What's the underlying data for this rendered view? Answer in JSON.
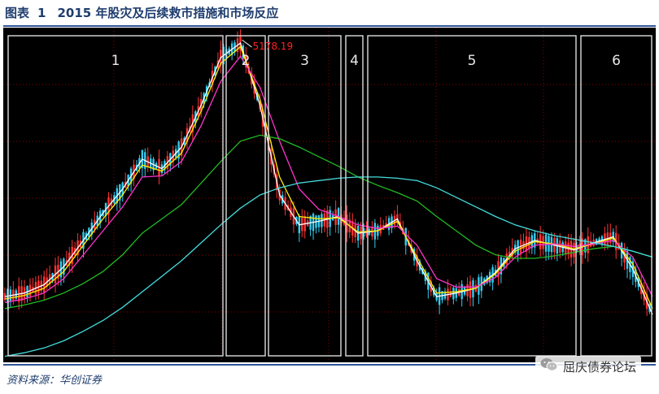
{
  "header": {
    "figure_label": "图表",
    "figure_number": "1",
    "title": "2015 年股灾及后续救市措施和市场反应"
  },
  "footer": {
    "source": "资料来源：华创证券",
    "watermark": "屈庆债券论坛",
    "watermark_icon": "wechat-icon"
  },
  "colors": {
    "background": "#000000",
    "grid": "#8b0000",
    "up_candle": "#ff3333",
    "down_candle": "#33ccee",
    "ma_white": "#ffffff",
    "ma_yellow": "#ffee00",
    "ma_magenta": "#ff33cc",
    "ma_green": "#22bb22",
    "ma_cyan": "#44dddd",
    "peak_label": "#ff2222",
    "phase_box": "#dddddd",
    "title": "#1f3d6e"
  },
  "chart_data": {
    "type": "line",
    "peak_annotation": "5178.19",
    "phases": [
      "1",
      "2",
      "3",
      "4",
      "5",
      "6"
    ],
    "grid": true,
    "series": [
      {
        "key": "ma_white",
        "values": [
          3050,
          3080,
          3150,
          3300,
          3520,
          3750,
          3950,
          4200,
          4120,
          4300,
          4650,
          5050,
          5170,
          4650,
          3900,
          3650,
          3680,
          3720,
          3580,
          3600,
          3700,
          3350,
          3050,
          3080,
          3120,
          3250,
          3450,
          3520,
          3480,
          3440,
          3500,
          3550,
          3280,
          2900
        ]
      },
      {
        "key": "ma_yellow",
        "values": [
          3030,
          3060,
          3120,
          3260,
          3480,
          3700,
          3900,
          4150,
          4100,
          4250,
          4600,
          5000,
          5140,
          4700,
          4050,
          3720,
          3700,
          3710,
          3590,
          3600,
          3680,
          3380,
          3080,
          3090,
          3120,
          3240,
          3430,
          3510,
          3490,
          3450,
          3490,
          3540,
          3320,
          2950
        ]
      },
      {
        "key": "ma_magenta",
        "values": [
          3000,
          3030,
          3080,
          3200,
          3400,
          3600,
          3800,
          4050,
          4060,
          4180,
          4480,
          4850,
          5060,
          4800,
          4350,
          3950,
          3780,
          3720,
          3650,
          3620,
          3640,
          3480,
          3200,
          3130,
          3130,
          3210,
          3380,
          3480,
          3490,
          3470,
          3490,
          3520,
          3380,
          3050
        ]
      },
      {
        "key": "ma_green",
        "values": [
          2950,
          2980,
          3020,
          3080,
          3160,
          3260,
          3400,
          3580,
          3700,
          3820,
          4000,
          4180,
          4350,
          4400,
          4370,
          4300,
          4220,
          4140,
          4050,
          3980,
          3920,
          3850,
          3720,
          3600,
          3480,
          3400,
          3370,
          3370,
          3390,
          3420,
          3450,
          3470,
          3430,
          3380
        ]
      },
      {
        "key": "ma_cyan",
        "values": [
          2550,
          2580,
          2620,
          2680,
          2760,
          2850,
          2960,
          3090,
          3220,
          3350,
          3500,
          3650,
          3790,
          3900,
          3960,
          4000,
          4020,
          4040,
          4050,
          4050,
          4040,
          4020,
          3960,
          3880,
          3800,
          3720,
          3650,
          3600,
          3560,
          3530,
          3500,
          3470,
          3430,
          3380
        ]
      }
    ],
    "xlabel": "",
    "ylabel": "",
    "ylim": [
      2500,
      5300
    ]
  }
}
